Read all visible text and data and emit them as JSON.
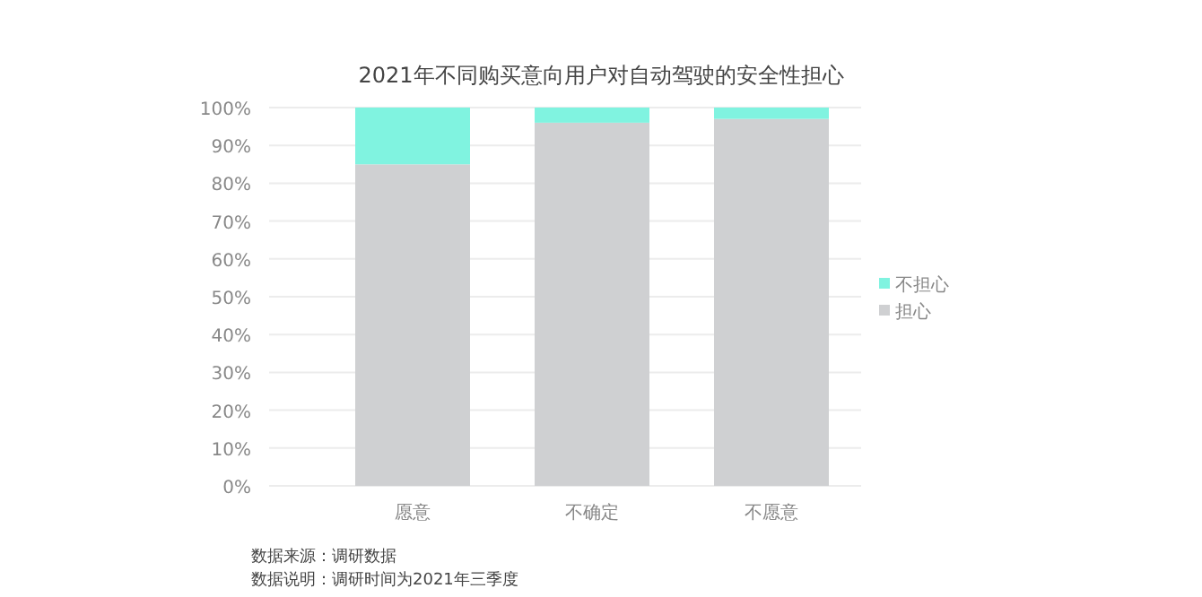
{
  "chart_data": {
    "type": "bar",
    "title": "2021年不同购买意向用户对自动驾驶的安全性担心",
    "categories": [
      "愿意",
      "不确定",
      "不愿意"
    ],
    "series": [
      {
        "name": "担心",
        "color": "#cfd0d2",
        "values": [
          85,
          96,
          97
        ]
      },
      {
        "name": "不担心",
        "color": "#80f3e0",
        "values": [
          15,
          4,
          3
        ]
      }
    ],
    "stacked": true,
    "ylim": [
      0,
      100
    ],
    "yticks": [
      {
        "value": 0,
        "label": "0%"
      },
      {
        "value": 10,
        "label": "10%"
      },
      {
        "value": 20,
        "label": "20%"
      },
      {
        "value": 30,
        "label": "30%"
      },
      {
        "value": 40,
        "label": "40%"
      },
      {
        "value": 50,
        "label": "50%"
      },
      {
        "value": 60,
        "label": "60%"
      },
      {
        "value": 70,
        "label": "70%"
      },
      {
        "value": 80,
        "label": "80%"
      },
      {
        "value": 90,
        "label": "90%"
      },
      {
        "value": 100,
        "label": "100%"
      }
    ],
    "grid": "y",
    "legend": "right",
    "annotations": [
      "数据来源：调研数据",
      "数据说明：调研时间为2021年三季度"
    ]
  }
}
